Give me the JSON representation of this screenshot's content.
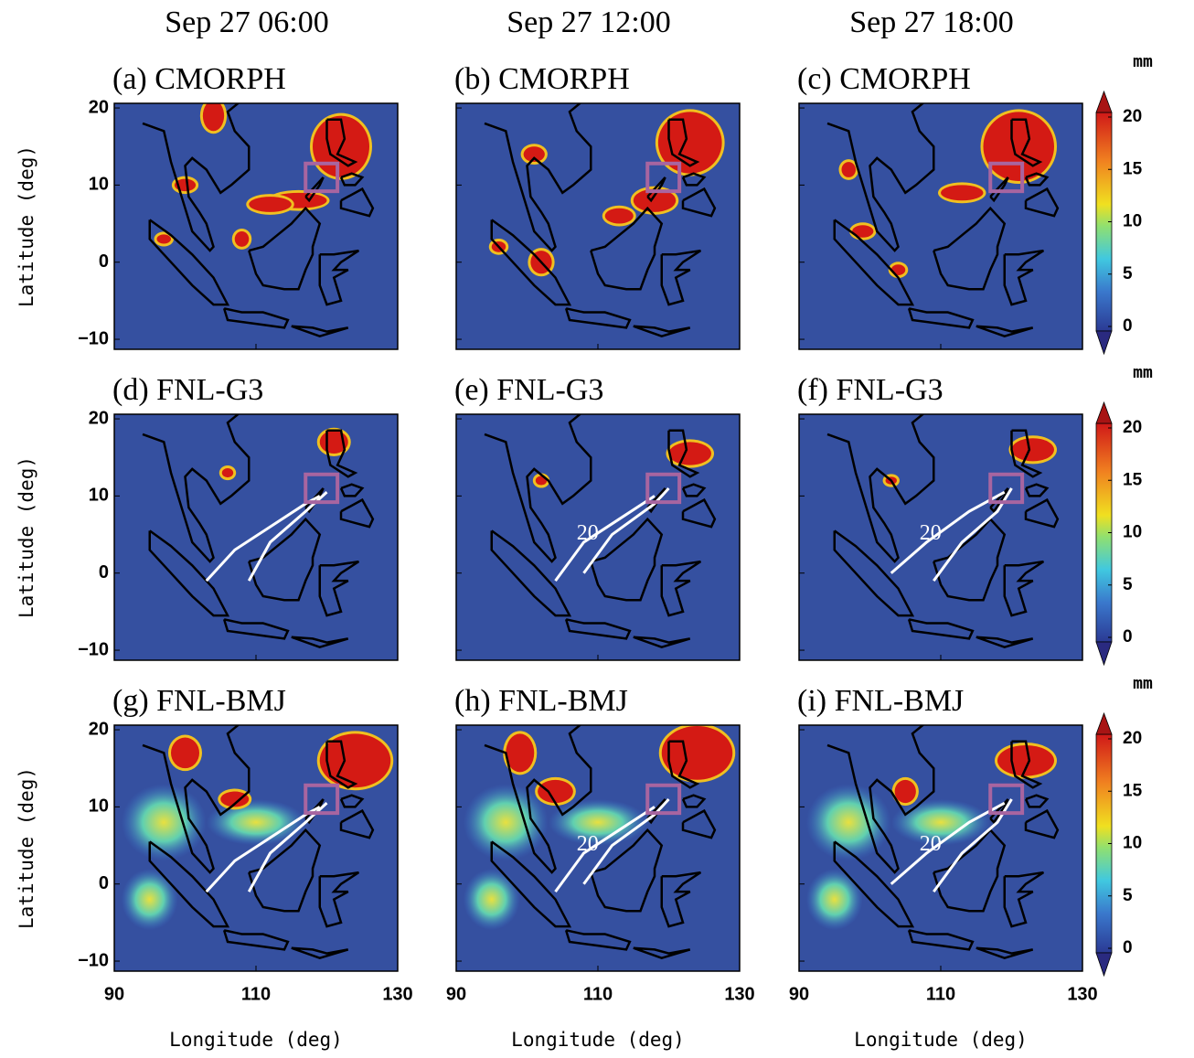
{
  "column_titles": [
    "Sep 27  06:00",
    "Sep 27 12:00",
    "Sep 27 18:00"
  ],
  "panels": [
    {
      "label": "(a) CMORPH"
    },
    {
      "label": "(b) CMORPH"
    },
    {
      "label": "(c) CMORPH"
    },
    {
      "label": "(d) FNL-G3"
    },
    {
      "label": "(e) FNL-G3"
    },
    {
      "label": "(f) FNL-G3"
    },
    {
      "label": "(g) FNL-BMJ"
    },
    {
      "label": "(h) FNL-BMJ"
    },
    {
      "label": "(i) FNL-BMJ"
    }
  ],
  "x_axis_label": "Longitude (deg)",
  "y_axis_label": "Latitude (deg)",
  "xlim": [
    90,
    130
  ],
  "ylim": [
    -11.3,
    20.6
  ],
  "xticks": [
    90,
    110,
    130
  ],
  "yticks": [
    {
      "value": -10,
      "label": "−10"
    },
    0,
    10,
    20
  ],
  "contour_label": 20,
  "region_box": {
    "lon": [
      117,
      121.5
    ],
    "lat": [
      9.2,
      12.8
    ],
    "color": "#a865a0"
  },
  "colorbar": {
    "unit": "mm",
    "lim": [
      0,
      20
    ],
    "ticks": [
      0,
      5,
      10,
      15,
      20
    ]
  }
}
